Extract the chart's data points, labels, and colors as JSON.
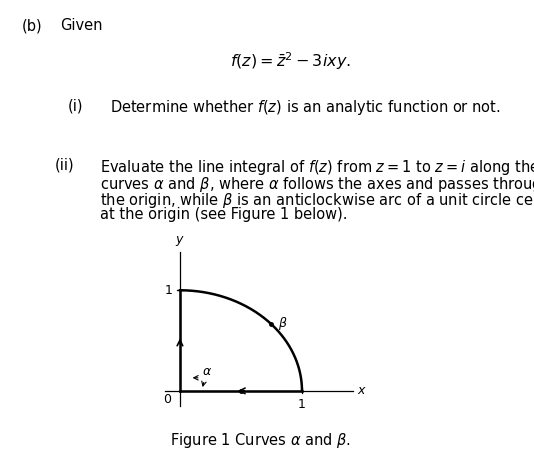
{
  "title_b": "(b)",
  "title_given": "Given",
  "formula": "$f(z) = \\bar{z}^2 - 3ixy.$",
  "part_i_label": "(i)",
  "part_i_text": "Determine whether $f(z)$ is an analytic function or not.",
  "part_ii_label": "(ii)",
  "part_ii_text_line1": "Evaluate the line integral of $f(z)$ from $z = 1$ to $z = i$ along the",
  "part_ii_text_line2": "curves $\\alpha$ and $\\beta$, where $\\alpha$ follows the axes and passes through",
  "part_ii_text_line3": "the origin, while $\\beta$ is an anticlockwise arc of a unit circle centred",
  "part_ii_text_line4": "at the origin (see Figure 1 below).",
  "fig_caption": "Figure 1 Curves $\\alpha$ and $\\beta$.",
  "bg_color": "#ffffff",
  "text_color": "#000000",
  "curve_color": "#000000",
  "axis_color": "#000000",
  "font_size_main": 10.5,
  "font_size_formula": 11.5,
  "alpha_label": "$\\alpha$",
  "beta_label": "$\\beta$"
}
